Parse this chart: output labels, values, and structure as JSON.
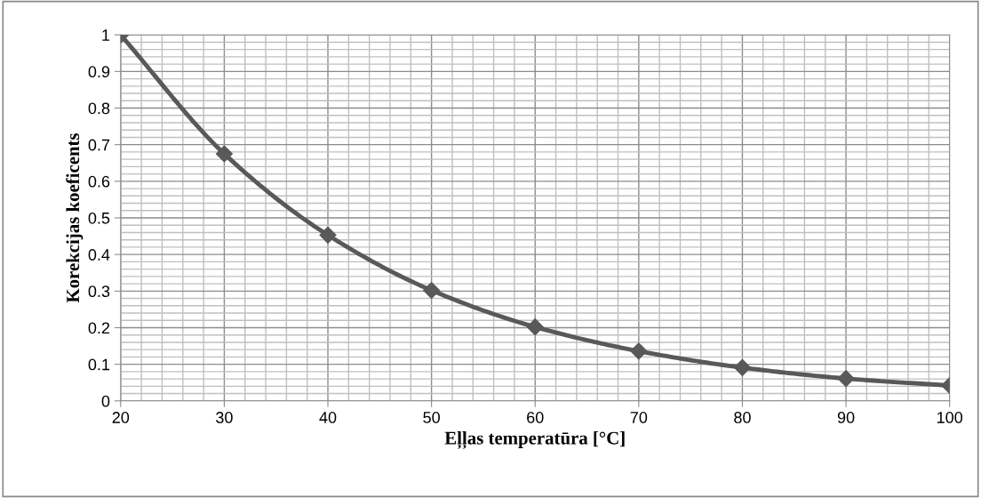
{
  "chart_data": {
    "type": "line",
    "xlabel": "Eļļas temperatūra [°C]",
    "ylabel": "Korekcijas koeficents",
    "x": [
      20,
      30,
      40,
      50,
      60,
      70,
      80,
      90,
      100
    ],
    "series": [
      {
        "color": "#595959",
        "values": [
          1.0,
          0.675,
          0.453,
          0.302,
          0.202,
          0.136,
          0.091,
          0.061,
          0.042
        ]
      }
    ],
    "xlim": [
      20,
      100
    ],
    "xticks": [
      20,
      30,
      40,
      50,
      60,
      70,
      80,
      90,
      100
    ],
    "ylim": [
      0,
      1
    ],
    "yticks": [
      0,
      0.1,
      0.2,
      0.3,
      0.4,
      0.5,
      0.6,
      0.7,
      0.8,
      0.9,
      1
    ],
    "grid": true,
    "marker": "diamond",
    "line_style": "solid",
    "legend": false
  }
}
